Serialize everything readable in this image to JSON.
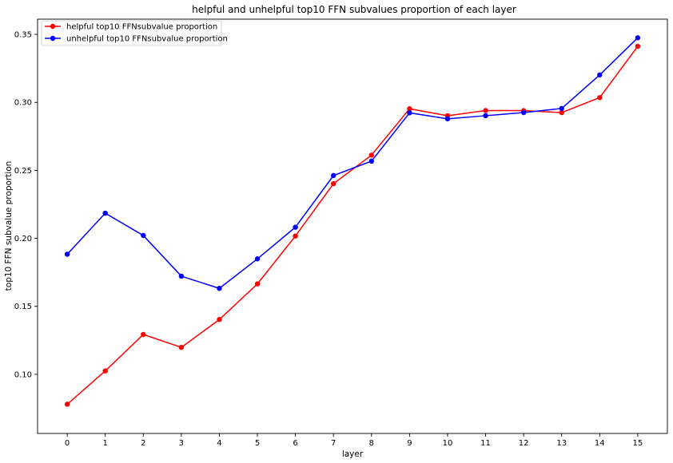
{
  "chart_data": {
    "type": "line",
    "title": "helpful and unhelpful top10 FFN subvalues proportion of each layer",
    "xlabel": "layer",
    "ylabel": "top10 FFN subvalue proportion",
    "x": [
      0,
      1,
      2,
      3,
      4,
      5,
      6,
      7,
      8,
      9,
      10,
      11,
      12,
      13,
      14,
      15
    ],
    "xlim": [
      -0.78,
      15.78
    ],
    "ylim": [
      0.0565,
      0.3612
    ],
    "yticks": [
      0.1,
      0.15,
      0.2,
      0.25,
      0.3,
      0.35
    ],
    "ytick_labels": [
      "0.10",
      "0.15",
      "0.20",
      "0.25",
      "0.30",
      "0.35"
    ],
    "xtick_labels": [
      "0",
      "1",
      "2",
      "3",
      "4",
      "5",
      "6",
      "7",
      "8",
      "9",
      "10",
      "11",
      "12",
      "13",
      "14",
      "15"
    ],
    "grid": false,
    "legend_position": "top-left",
    "series": [
      {
        "name": "helpful top10 FFNsubvalue proportion",
        "color": "#ff0000",
        "marker": "circle",
        "values": [
          0.078,
          0.1025,
          0.1293,
          0.1198,
          0.1403,
          0.1665,
          0.2017,
          0.2402,
          0.2612,
          0.2953,
          0.2902,
          0.294,
          0.2939,
          0.2925,
          0.3035,
          0.3412
        ]
      },
      {
        "name": "unhelpful top10 FFNsubvalue proportion",
        "color": "#0000ff",
        "marker": "circle",
        "values": [
          0.1883,
          0.2185,
          0.2021,
          0.1722,
          0.1632,
          0.1849,
          0.2082,
          0.2462,
          0.2568,
          0.2923,
          0.2879,
          0.2902,
          0.2925,
          0.2955,
          0.3202,
          0.3475
        ]
      }
    ]
  }
}
